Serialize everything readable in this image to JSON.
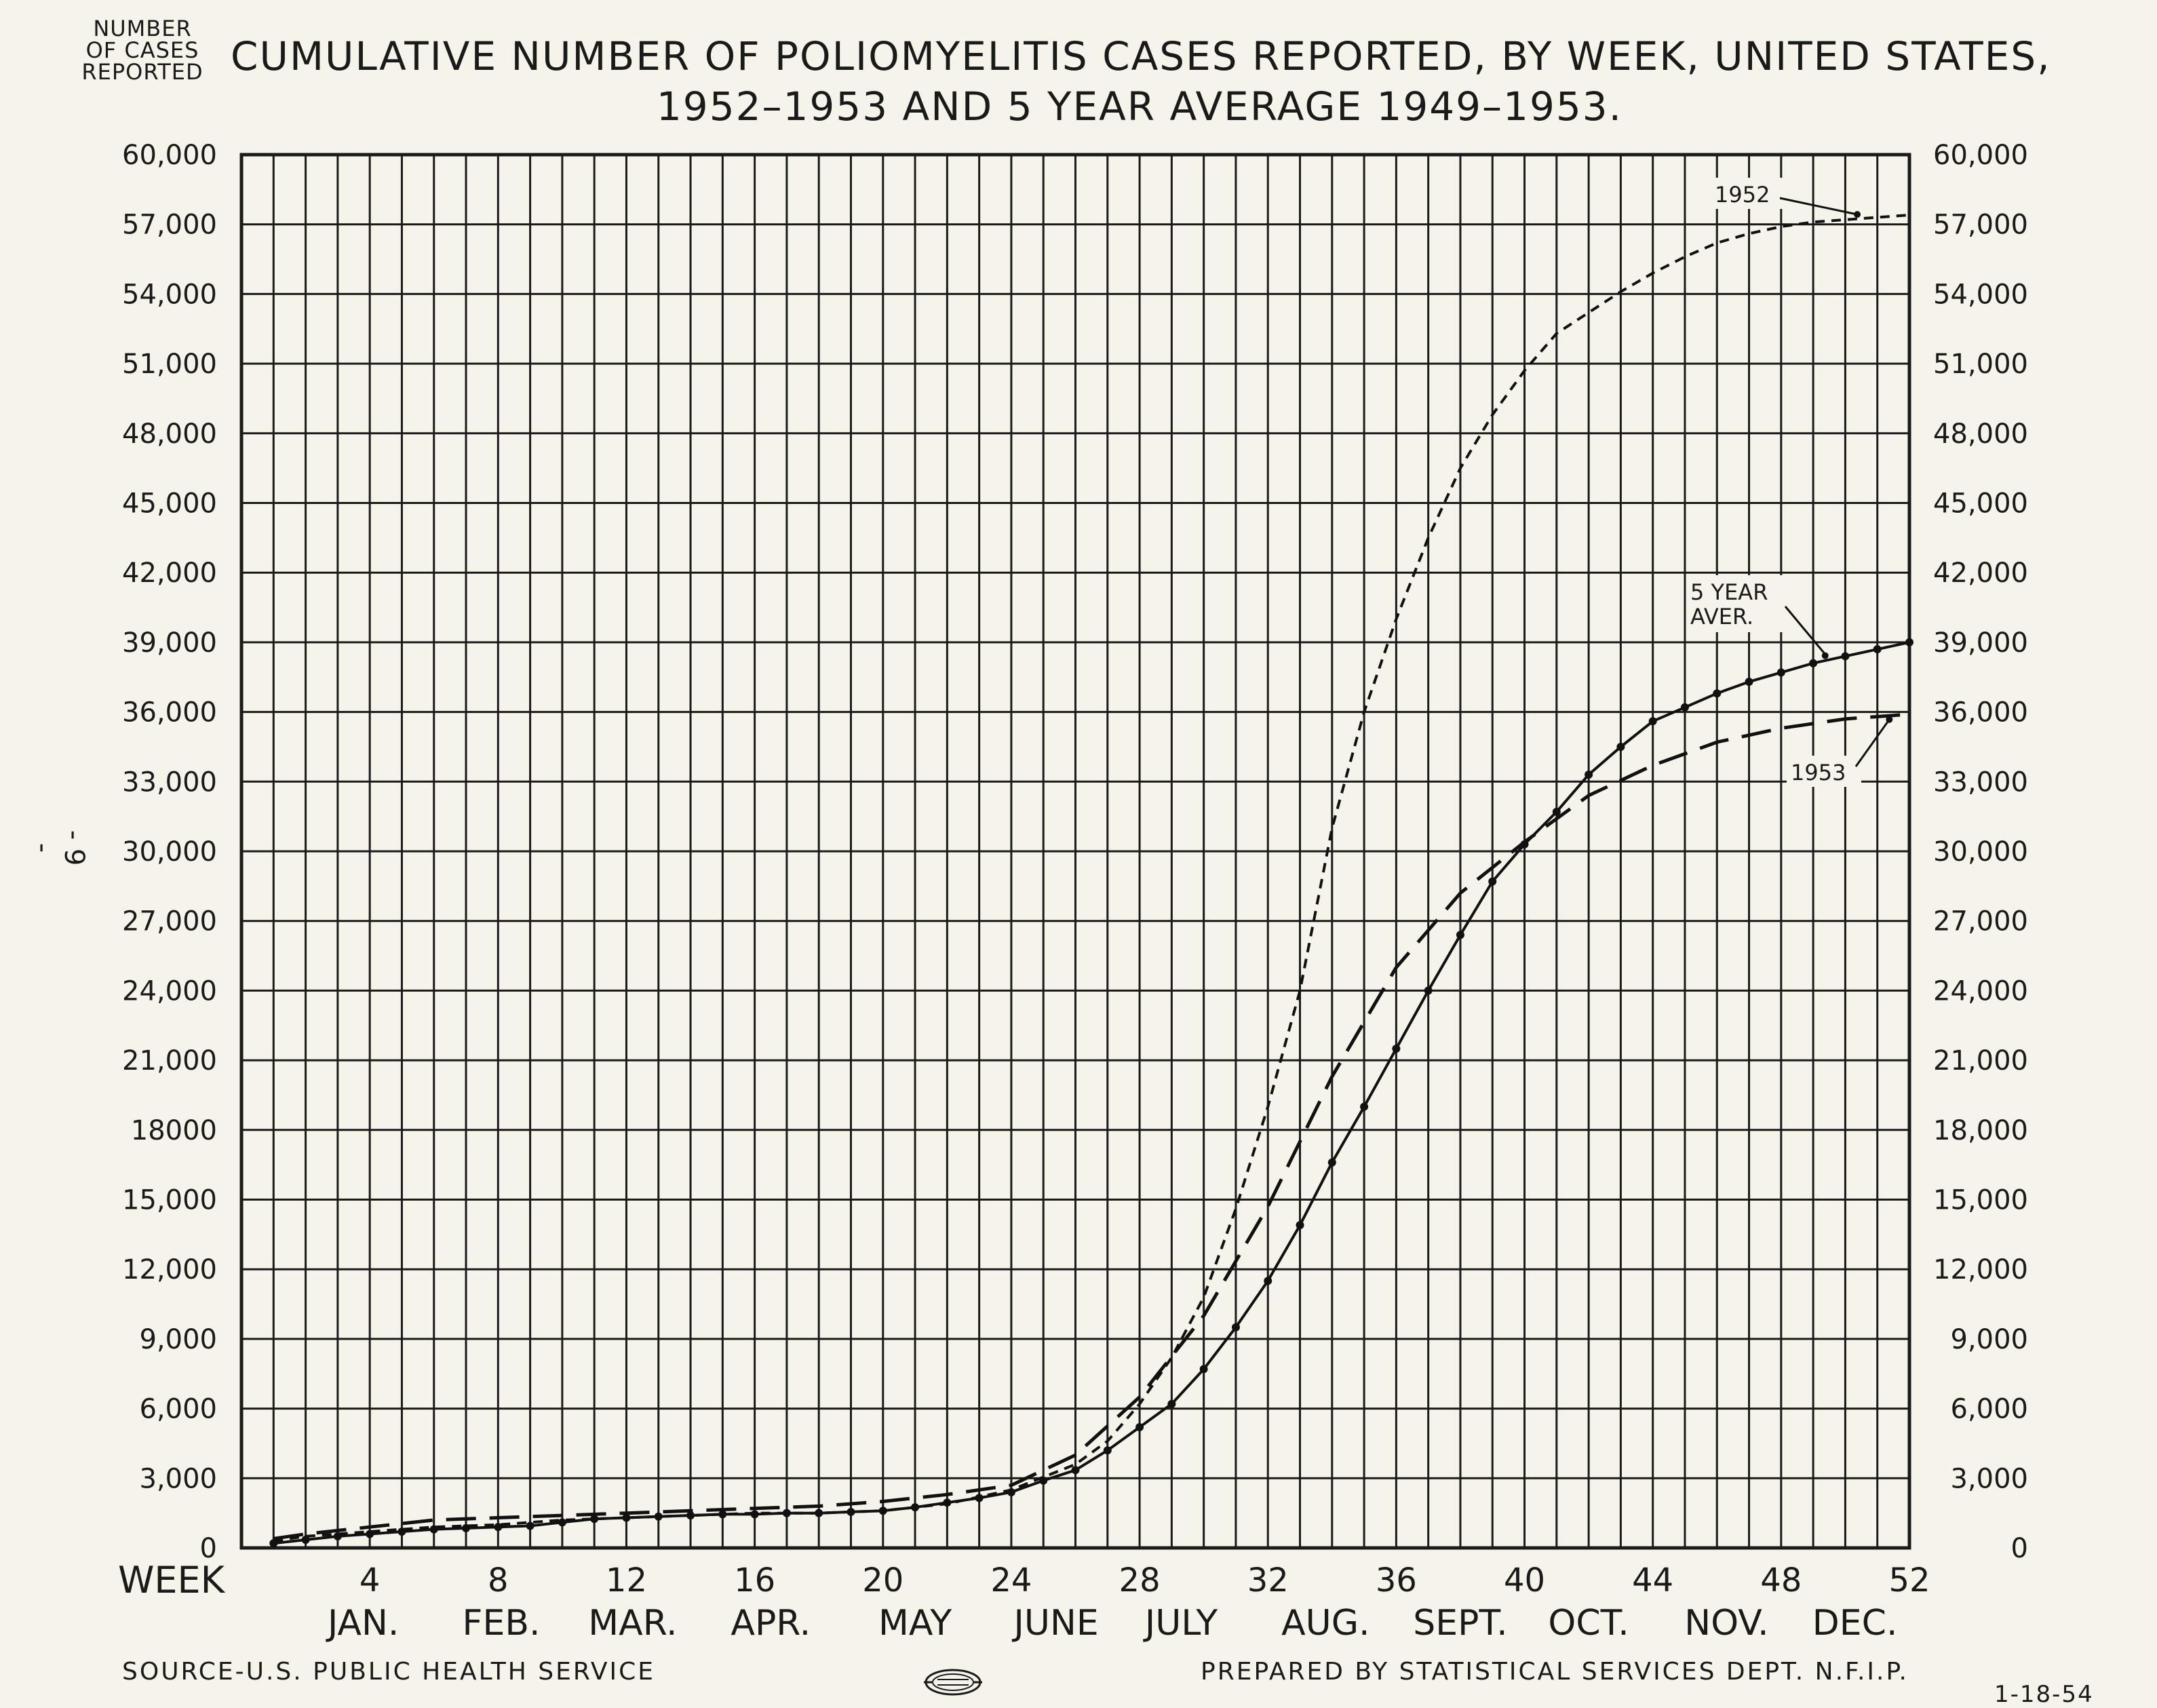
{
  "header": {
    "ylabel_lines": [
      "NUMBER",
      "OF CASES",
      "REPORTED"
    ],
    "title_line1": "CUMULATIVE NUMBER OF POLIOMYELITIS CASES REPORTED, BY WEEK, UNITED STATES,",
    "title_line2": "1952–1953 AND 5 YEAR AVERAGE 1949–1953."
  },
  "side_mark": "- 9 -",
  "footer": {
    "source": "SOURCE-U.S. PUBLIC HEALTH SERVICE",
    "prepared_by": "PREPARED BY STATISTICAL SERVICES DEPT. N.F.I.P.",
    "date": "1-18-54",
    "logo": "union-label-seal"
  },
  "chart_data": {
    "type": "line",
    "title": "CUMULATIVE NUMBER OF POLIOMYELITIS CASES REPORTED, BY WEEK, UNITED STATES, 1952–1953 AND 5 YEAR AVERAGE 1949–1953.",
    "xlabel": "WEEK",
    "ylabel": "NUMBER OF CASES REPORTED",
    "xlim": [
      0,
      52
    ],
    "ylim": [
      0,
      60000
    ],
    "grid": true,
    "x_ticks": [
      4,
      8,
      12,
      16,
      20,
      24,
      28,
      32,
      36,
      40,
      44,
      48,
      52
    ],
    "y_tick_labels_left": [
      "0",
      "3,000",
      "6,000",
      "9,000",
      "12,000",
      "15,000",
      "18000",
      "21,000",
      "24,000",
      "27,000",
      "30,000",
      "33,000",
      "36,000",
      "39,000",
      "42,000",
      "45,000",
      "48,000",
      "51,000",
      "54,000",
      "57,000",
      "60,000"
    ],
    "y_tick_labels_right": [
      "0",
      "3,000",
      "6,000",
      "9,000",
      "12,000",
      "15,000",
      "18,000",
      "21,000",
      "24,000",
      "27,000",
      "30,000",
      "33,000",
      "36,000",
      "39,000",
      "42,000",
      "45,000",
      "48,000",
      "51,000",
      "54,000",
      "57,000",
      "60,000"
    ],
    "y_tick_values": [
      0,
      3000,
      6000,
      9000,
      12000,
      15000,
      18000,
      21000,
      24000,
      27000,
      30000,
      33000,
      36000,
      39000,
      42000,
      45000,
      48000,
      51000,
      54000,
      57000,
      60000
    ],
    "months": [
      {
        "label": "JAN.",
        "x": 3.8
      },
      {
        "label": "FEB.",
        "x": 8.1
      },
      {
        "label": "MAR.",
        "x": 12.2
      },
      {
        "label": "APR.",
        "x": 16.5
      },
      {
        "label": "MAY",
        "x": 21.0
      },
      {
        "label": "JUNE",
        "x": 25.4
      },
      {
        "label": "JULY",
        "x": 29.3
      },
      {
        "label": "AUG.",
        "x": 33.8
      },
      {
        "label": "SEPT.",
        "x": 38.0
      },
      {
        "label": "OCT.",
        "x": 42.0
      },
      {
        "label": "NOV.",
        "x": 46.3
      },
      {
        "label": "DEC.",
        "x": 50.3
      }
    ],
    "series": [
      {
        "name": "1952",
        "style": "short-dash",
        "x": [
          1,
          2,
          4,
          6,
          8,
          10,
          12,
          14,
          16,
          18,
          20,
          22,
          24,
          26,
          27,
          28,
          29,
          30,
          31,
          32,
          33,
          34,
          35,
          36,
          37,
          38,
          39,
          40,
          41,
          42,
          43,
          44,
          45,
          46,
          47,
          48,
          49,
          50,
          51,
          52
        ],
        "y": [
          300,
          500,
          700,
          900,
          1000,
          1200,
          1300,
          1400,
          1500,
          1500,
          1600,
          1900,
          2500,
          3600,
          4600,
          6200,
          8200,
          10800,
          14600,
          19000,
          24000,
          31000,
          36000,
          40000,
          43500,
          46500,
          48800,
          50700,
          52300,
          53200,
          54100,
          54900,
          55600,
          56200,
          56600,
          56900,
          57100,
          57200,
          57300,
          57400
        ]
      },
      {
        "name": "5 YEAR AVER.",
        "style": "solid-with-dots",
        "x": [
          1,
          2,
          3,
          4,
          5,
          6,
          7,
          8,
          9,
          10,
          11,
          12,
          13,
          14,
          15,
          16,
          17,
          18,
          19,
          20,
          21,
          22,
          23,
          24,
          25,
          26,
          27,
          28,
          29,
          30,
          31,
          32,
          33,
          34,
          35,
          36,
          37,
          38,
          39,
          40,
          41,
          42,
          43,
          44,
          45,
          46,
          47,
          48,
          49,
          50,
          51,
          52
        ],
        "y": [
          200,
          350,
          500,
          600,
          700,
          800,
          850,
          900,
          950,
          1100,
          1250,
          1300,
          1350,
          1400,
          1450,
          1450,
          1500,
          1500,
          1550,
          1600,
          1750,
          1950,
          2150,
          2400,
          2900,
          3350,
          4200,
          5200,
          6200,
          7700,
          9500,
          11500,
          13900,
          16600,
          19000,
          21500,
          24000,
          26400,
          28700,
          30300,
          31700,
          33300,
          34500,
          35600,
          36200,
          36800,
          37300,
          37700,
          38100,
          38400,
          38700,
          39000
        ]
      },
      {
        "name": "1953",
        "style": "long-dash",
        "x": [
          1,
          2,
          4,
          6,
          8,
          10,
          12,
          14,
          16,
          18,
          20,
          22,
          24,
          26,
          28,
          30,
          32,
          34,
          36,
          38,
          40,
          42,
          44,
          46,
          48,
          50,
          52
        ],
        "y": [
          400,
          600,
          900,
          1200,
          1300,
          1400,
          1500,
          1600,
          1700,
          1800,
          2000,
          2300,
          2700,
          4000,
          6500,
          10000,
          14700,
          20300,
          25000,
          28200,
          30400,
          32400,
          33700,
          34700,
          35300,
          35700,
          35900
        ]
      }
    ],
    "annotations": [
      {
        "text": "1952",
        "target_series": "1952"
      },
      {
        "text": "5 YEAR AVER.",
        "target_series": "5 YEAR AVER."
      },
      {
        "text": "1953",
        "target_series": "1953"
      }
    ]
  }
}
